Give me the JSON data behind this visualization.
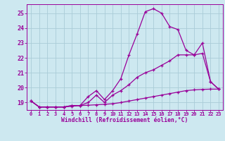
{
  "xlabel": "Windchill (Refroidissement éolien,°C)",
  "background_color": "#cde8f0",
  "grid_color": "#aaccd8",
  "line_color": "#990099",
  "x_ticks": [
    0,
    1,
    2,
    3,
    4,
    5,
    6,
    7,
    8,
    9,
    10,
    11,
    12,
    13,
    14,
    15,
    16,
    17,
    18,
    19,
    20,
    21,
    22,
    23
  ],
  "ylim": [
    18.5,
    25.6
  ],
  "xlim": [
    -0.5,
    23.5
  ],
  "yticks": [
    19,
    20,
    21,
    22,
    23,
    24,
    25
  ],
  "series": [
    {
      "x": [
        0,
        1,
        2,
        3,
        4,
        5,
        6,
        7,
        8,
        9,
        10,
        11,
        12,
        13,
        14,
        15,
        16,
        17,
        18,
        19,
        20,
        21,
        22,
        23
      ],
      "y": [
        19.1,
        18.7,
        18.7,
        18.7,
        18.7,
        18.8,
        18.8,
        19.4,
        19.8,
        19.2,
        19.8,
        20.6,
        22.2,
        23.6,
        25.1,
        25.3,
        25.0,
        24.1,
        23.9,
        22.5,
        22.2,
        23.0,
        20.4,
        19.9
      ]
    },
    {
      "x": [
        0,
        1,
        2,
        3,
        4,
        5,
        6,
        7,
        8,
        9,
        10,
        11,
        12,
        13,
        14,
        15,
        16,
        17,
        18,
        19,
        20,
        21,
        22,
        23
      ],
      "y": [
        19.1,
        18.7,
        18.7,
        18.7,
        18.7,
        18.8,
        18.8,
        19.0,
        19.5,
        19.0,
        19.5,
        19.8,
        20.2,
        20.7,
        21.0,
        21.2,
        21.5,
        21.8,
        22.2,
        22.2,
        22.2,
        22.3,
        20.4,
        19.9
      ]
    },
    {
      "x": [
        0,
        1,
        2,
        3,
        4,
        5,
        6,
        7,
        8,
        9,
        10,
        11,
        12,
        13,
        14,
        15,
        16,
        17,
        18,
        19,
        20,
        21,
        22,
        23
      ],
      "y": [
        19.1,
        18.7,
        18.7,
        18.7,
        18.7,
        18.75,
        18.8,
        18.82,
        18.85,
        18.88,
        18.92,
        19.0,
        19.1,
        19.2,
        19.3,
        19.4,
        19.5,
        19.6,
        19.7,
        19.8,
        19.85,
        19.88,
        19.9,
        19.9
      ]
    }
  ]
}
